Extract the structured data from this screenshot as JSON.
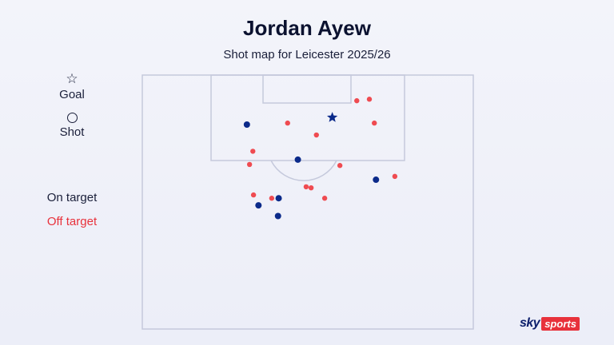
{
  "header": {
    "title": "Jordan Ayew",
    "subtitle": "Shot map for Leicester 2025/26"
  },
  "legend": {
    "goal_label": "Goal",
    "shot_label": "Shot",
    "goal_icon": "star-icon",
    "shot_icon": "circle-icon",
    "on_target_label": "On target",
    "off_target_label": "Off target"
  },
  "colors": {
    "on_target": "#0b2a8a",
    "off_target": "#ef4b51",
    "goal": "#0b2a8a",
    "pitch_lines": "#c5c9dc",
    "off_target_text": "#e8313b"
  },
  "branding": {
    "sky": "sky",
    "sports": "sports"
  },
  "chart_data": {
    "type": "scatter",
    "title": "Jordan Ayew",
    "subtitle": "Shot map for Leicester 2025/26",
    "x_axis": "pitch width (0 = left touchline, 100 = right touchline)",
    "y_axis": "distance from goal line (0 = goal line, 100 = edge of view)",
    "series": [
      {
        "name": "Goal",
        "marker": "star",
        "points": [
          {
            "x": 57.4,
            "y": 16.7
          }
        ]
      },
      {
        "name": "On target",
        "marker": "circle",
        "points": [
          {
            "x": 31.6,
            "y": 19.5
          },
          {
            "x": 47.0,
            "y": 33.3
          },
          {
            "x": 70.6,
            "y": 41.2
          },
          {
            "x": 41.2,
            "y": 48.5
          },
          {
            "x": 35.1,
            "y": 51.3
          },
          {
            "x": 41.0,
            "y": 55.5
          }
        ]
      },
      {
        "name": "Off target",
        "marker": "circle",
        "points": [
          {
            "x": 64.8,
            "y": 10.1
          },
          {
            "x": 68.6,
            "y": 9.5
          },
          {
            "x": 43.9,
            "y": 18.9
          },
          {
            "x": 70.1,
            "y": 18.9
          },
          {
            "x": 52.6,
            "y": 23.6
          },
          {
            "x": 33.4,
            "y": 30.0
          },
          {
            "x": 32.4,
            "y": 35.2
          },
          {
            "x": 59.7,
            "y": 35.6
          },
          {
            "x": 76.3,
            "y": 39.9
          },
          {
            "x": 49.5,
            "y": 44.0
          },
          {
            "x": 51.0,
            "y": 44.4
          },
          {
            "x": 33.6,
            "y": 47.2
          },
          {
            "x": 39.1,
            "y": 48.5
          },
          {
            "x": 55.1,
            "y": 48.5
          }
        ]
      }
    ]
  }
}
